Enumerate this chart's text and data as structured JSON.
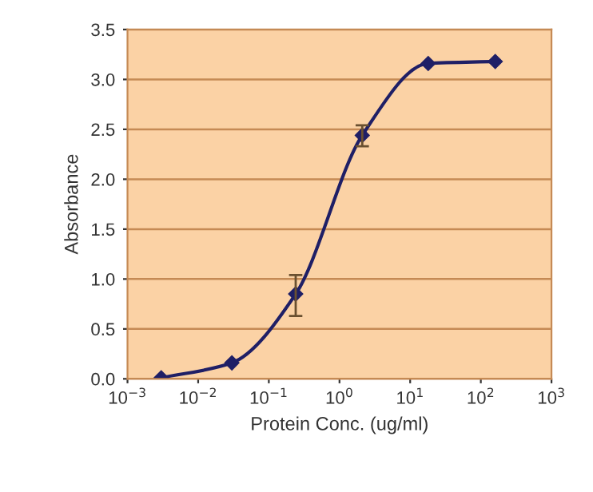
{
  "chart_data": {
    "type": "line",
    "xlabel": "Protein Conc. (ug/ml)",
    "ylabel": "Absorbance",
    "log": "x",
    "x": [
      0.003,
      0.03,
      0.24,
      2.1,
      18,
      160
    ],
    "series": [
      {
        "color": "#1f1f66",
        "values": [
          0.01,
          0.16,
          0.85,
          2.44,
          3.16,
          3.18
        ],
        "errors": [
          null,
          null,
          [
            0.63,
            1.04
          ],
          [
            2.33,
            2.54
          ],
          null,
          null
        ]
      }
    ],
    "marker": "diamond",
    "line_style": "solid",
    "grid": "y",
    "xlim": [
      0.001,
      1000
    ],
    "xticks": [
      {
        "value": 0.001,
        "label": "10$^{−3}$"
      },
      {
        "value": 0.01,
        "label": "10$^{−2}$"
      },
      {
        "value": 0.1,
        "label": "10$^{−1}$"
      },
      {
        "value": 1,
        "label": "10$^{0}$"
      },
      {
        "value": 10,
        "label": "10$^{1}$"
      },
      {
        "value": 100,
        "label": "10$^{2}$"
      },
      {
        "value": 1000,
        "label": "10$^{3}$"
      }
    ],
    "ylim": [
      0,
      3.5
    ],
    "yticks": [
      {
        "value": 0,
        "label": "0.0"
      },
      {
        "value": 0.5,
        "label": "0.5"
      },
      {
        "value": 1,
        "label": "1.0"
      },
      {
        "value": 1.5,
        "label": "1.5"
      },
      {
        "value": 2,
        "label": "2.0"
      },
      {
        "value": 2.5,
        "label": "2.5"
      },
      {
        "value": 3,
        "label": "3.0"
      },
      {
        "value": 3.5,
        "label": "3.5"
      }
    ]
  }
}
